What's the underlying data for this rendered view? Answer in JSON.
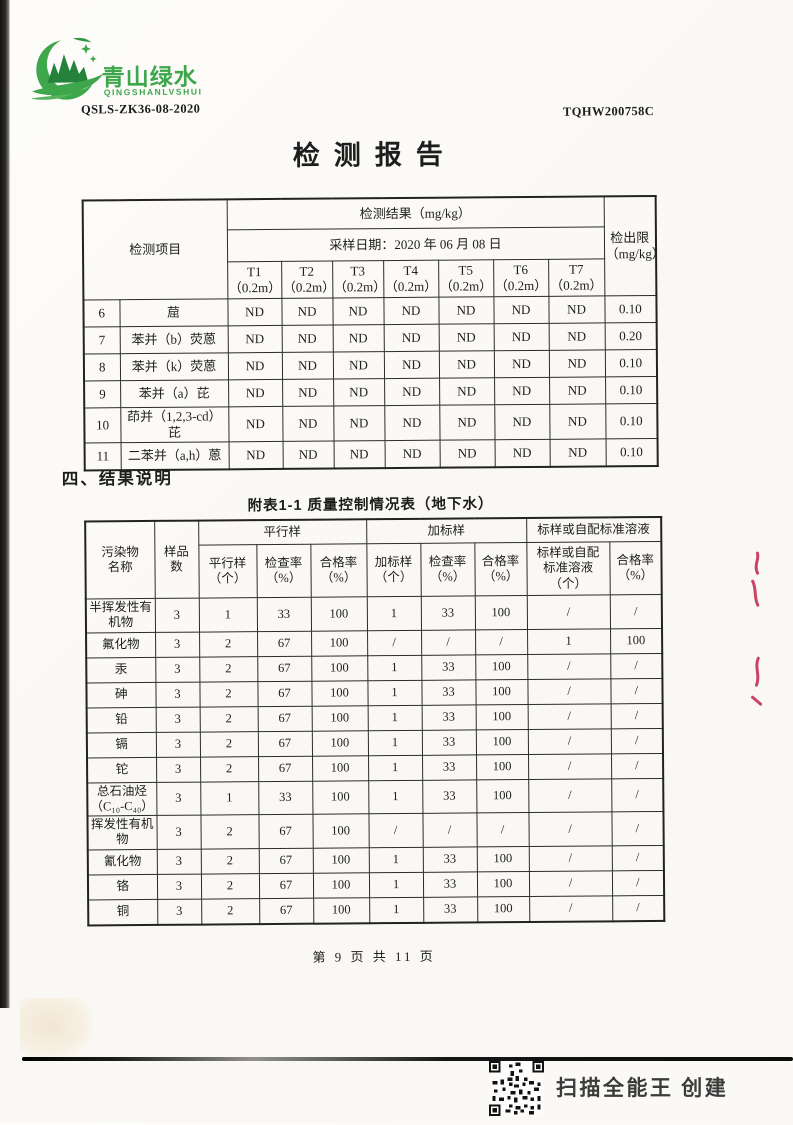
{
  "page": {
    "doc_code": "QSLS-ZK36-08-2020",
    "report_code": "TQHW200758C",
    "title": "检测报告",
    "section_heading": "四、结果说明",
    "footer": "第 9 页 共 11 页",
    "scanner_credit": "扫描全能王 创建"
  },
  "logo": {
    "brand_cn": "青山绿水",
    "brand_en": "QINGSHANLVSHUI",
    "green": "#3ea64b",
    "dark_green": "#25823a"
  },
  "colors": {
    "border": "#2c2c2c",
    "red_mark": "#c2234a"
  },
  "table1": {
    "corner_label": "检测项目",
    "result_group_label": "检测结果（mg/kg）",
    "sampling_date_label": "采样日期：2020 年 06 月 08 日",
    "detection_limit_label": "检出限\n（mg/kg）",
    "sample_columns": [
      "T1\n（0.2m）",
      "T2\n（0.2m）",
      "T3\n（0.2m）",
      "T4\n（0.2m）",
      "T5\n（0.2m）",
      "T6\n（0.2m）",
      "T7\n（0.2m）"
    ],
    "rows": [
      {
        "no": "6",
        "name": "䓛",
        "values": [
          "ND",
          "ND",
          "ND",
          "ND",
          "ND",
          "ND",
          "ND"
        ],
        "limit": "0.10"
      },
      {
        "no": "7",
        "name": "苯并（b）荧蒽",
        "values": [
          "ND",
          "ND",
          "ND",
          "ND",
          "ND",
          "ND",
          "ND"
        ],
        "limit": "0.20"
      },
      {
        "no": "8",
        "name": "苯并（k）荧蒽",
        "values": [
          "ND",
          "ND",
          "ND",
          "ND",
          "ND",
          "ND",
          "ND"
        ],
        "limit": "0.10"
      },
      {
        "no": "9",
        "name": "苯并（a）芘",
        "values": [
          "ND",
          "ND",
          "ND",
          "ND",
          "ND",
          "ND",
          "ND"
        ],
        "limit": "0.10"
      },
      {
        "no": "10",
        "name": "茚并（1,2,3-cd）芘",
        "values": [
          "ND",
          "ND",
          "ND",
          "ND",
          "ND",
          "ND",
          "ND"
        ],
        "limit": "0.10"
      },
      {
        "no": "11",
        "name": "二苯并（a,h）蒽",
        "values": [
          "ND",
          "ND",
          "ND",
          "ND",
          "ND",
          "ND",
          "ND"
        ],
        "limit": "0.10"
      }
    ]
  },
  "table2": {
    "caption": "附表1-1 质量控制情况表（地下水）",
    "col_pollutant": "污染物\n名称",
    "col_sample_count": "样品\n数",
    "group_parallel": "平行样",
    "group_spiked": "加标样",
    "group_standard": "标样或自配标准溶液",
    "sub_parallel_count": "平行样\n（个）",
    "sub_parallel_check_rate": "检查率\n（%）",
    "sub_parallel_pass_rate": "合格率\n（%）",
    "sub_spiked_count": "加标样\n（个）",
    "sub_spiked_check_rate": "检查率\n（%）",
    "sub_spiked_pass_rate": "合格率\n（%）",
    "sub_standard_count": "标样或自配\n标准溶液\n（个）",
    "sub_standard_pass_rate": "合格率\n（%）",
    "rows": [
      {
        "name": "半挥发性有机物",
        "cells": [
          "3",
          "1",
          "33",
          "100",
          "1",
          "33",
          "100",
          "/",
          "/"
        ]
      },
      {
        "name": "氟化物",
        "cells": [
          "3",
          "2",
          "67",
          "100",
          "/",
          "/",
          "/",
          "1",
          "100"
        ]
      },
      {
        "name": "汞",
        "cells": [
          "3",
          "2",
          "67",
          "100",
          "1",
          "33",
          "100",
          "/",
          "/"
        ]
      },
      {
        "name": "砷",
        "cells": [
          "3",
          "2",
          "67",
          "100",
          "1",
          "33",
          "100",
          "/",
          "/"
        ]
      },
      {
        "name": "铅",
        "cells": [
          "3",
          "2",
          "67",
          "100",
          "1",
          "33",
          "100",
          "/",
          "/"
        ]
      },
      {
        "name": "镉",
        "cells": [
          "3",
          "2",
          "67",
          "100",
          "1",
          "33",
          "100",
          "/",
          "/"
        ]
      },
      {
        "name": "铊",
        "cells": [
          "3",
          "2",
          "67",
          "100",
          "1",
          "33",
          "100",
          "/",
          "/"
        ]
      },
      {
        "name": "总石油烃（C₁₀-C₄₀）",
        "cells": [
          "3",
          "1",
          "33",
          "100",
          "1",
          "33",
          "100",
          "/",
          "/"
        ]
      },
      {
        "name": "挥发性有机物",
        "cells": [
          "3",
          "2",
          "67",
          "100",
          "/",
          "/",
          "/",
          "/",
          "/"
        ]
      },
      {
        "name": "氰化物",
        "cells": [
          "3",
          "2",
          "67",
          "100",
          "1",
          "33",
          "100",
          "/",
          "/"
        ]
      },
      {
        "name": "铬",
        "cells": [
          "3",
          "2",
          "67",
          "100",
          "1",
          "33",
          "100",
          "/",
          "/"
        ]
      },
      {
        "name": "铜",
        "cells": [
          "3",
          "2",
          "67",
          "100",
          "1",
          "33",
          "100",
          "/",
          "/"
        ]
      }
    ]
  }
}
